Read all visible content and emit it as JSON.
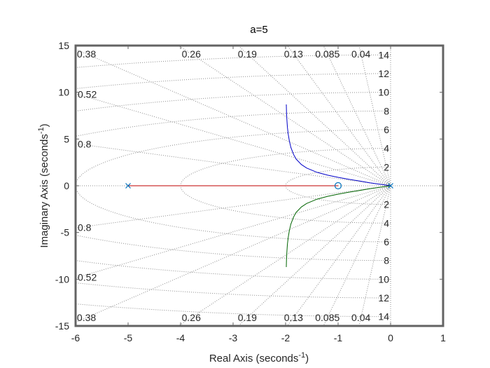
{
  "chart_data": {
    "type": "line",
    "title": "a=5",
    "xlabel": "Real Axis (seconds",
    "ylabel": "Imaginary Axis (seconds",
    "axis_unit_exponent": "-1",
    "xlim": [
      -6,
      1
    ],
    "ylim": [
      -15,
      15
    ],
    "x_ticks": [
      -6,
      -5,
      -4,
      -3,
      -2,
      -1,
      0,
      1
    ],
    "y_ticks": [
      -15,
      -10,
      -5,
      0,
      5,
      10,
      15
    ],
    "grid": true,
    "grid_style": "dotted",
    "damping_ratios": [
      {
        "value": 0.04,
        "label": "0.04"
      },
      {
        "value": 0.085,
        "label": "0.085"
      },
      {
        "value": 0.13,
        "label": "0.13"
      },
      {
        "value": 0.19,
        "label": "0.19"
      },
      {
        "value": 0.26,
        "label": "0.26"
      },
      {
        "value": 0.38,
        "label": "0.38"
      },
      {
        "value": 0.52,
        "label": "0.52"
      },
      {
        "value": 0.8,
        "label": "0.8"
      }
    ],
    "natural_frequencies": [
      {
        "value": 2,
        "label": "2"
      },
      {
        "value": 4,
        "label": "4"
      },
      {
        "value": 6,
        "label": "6"
      },
      {
        "value": 8,
        "label": "8"
      },
      {
        "value": 10,
        "label": "10"
      },
      {
        "value": 12,
        "label": "12"
      },
      {
        "value": 14,
        "label": "14"
      }
    ],
    "poles": [
      {
        "x": -5,
        "y": 0
      },
      {
        "x": 0,
        "y": 0
      }
    ],
    "zeros": [
      {
        "x": -1,
        "y": 0
      }
    ],
    "series": [
      {
        "color": "#c00000",
        "x": [
          -5,
          -1
        ],
        "y": [
          0,
          0
        ]
      },
      {
        "color": "#0000c8",
        "x": [
          0,
          -0.2,
          -0.4,
          -0.6,
          -0.8,
          -1.0,
          -1.2,
          -1.4,
          -1.6,
          -1.7,
          -1.8,
          -1.85,
          -1.9,
          -1.93,
          -1.95,
          -1.965,
          -1.975,
          -1.982,
          -1.987
        ],
        "y": [
          0,
          0.16,
          0.32,
          0.52,
          0.7,
          0.9,
          1.13,
          1.43,
          1.9,
          2.27,
          2.86,
          3.36,
          4.11,
          4.83,
          5.5,
          6.25,
          7.0,
          7.8,
          8.7
        ]
      },
      {
        "color": "#006400",
        "x": [
          0,
          -0.2,
          -0.4,
          -0.6,
          -0.8,
          -1.0,
          -1.2,
          -1.4,
          -1.6,
          -1.7,
          -1.8,
          -1.85,
          -1.9,
          -1.93,
          -1.95,
          -1.965,
          -1.975,
          -1.982,
          -1.987
        ],
        "y": [
          0,
          -0.16,
          -0.32,
          -0.52,
          -0.7,
          -0.9,
          -1.13,
          -1.43,
          -1.9,
          -2.27,
          -2.86,
          -3.36,
          -4.11,
          -4.83,
          -5.5,
          -6.25,
          -7.0,
          -7.8,
          -8.7
        ]
      }
    ]
  }
}
